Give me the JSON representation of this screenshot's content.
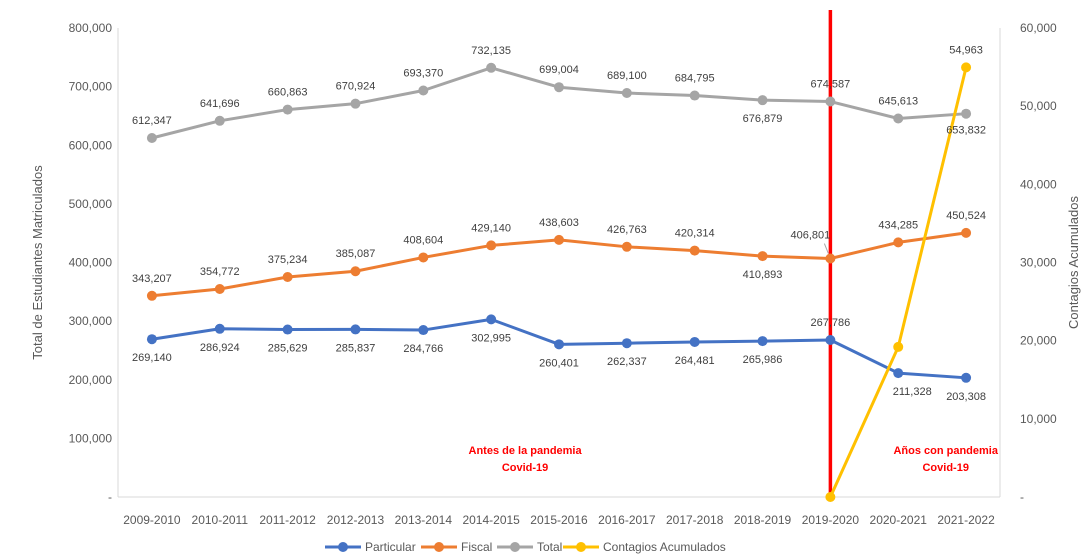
{
  "chart_data": {
    "type": "line",
    "categories": [
      "2009-2010",
      "2010-2011",
      "2011-2012",
      "2012-2013",
      "2013-2014",
      "2014-2015",
      "2015-2016",
      "2016-2017",
      "2017-2018",
      "2018-2019",
      "2019-2020",
      "2020-2021",
      "2021-2022"
    ],
    "ylabel": "Total de Estudiantes Matriculados",
    "y2label": "Contagios Acumulados",
    "ylim": [
      0,
      800000
    ],
    "y2lim": [
      0,
      60000
    ],
    "yticks": [
      "-",
      "100,000",
      "200,000",
      "300,000",
      "400,000",
      "500,000",
      "600,000",
      "700,000",
      "800,000"
    ],
    "y2ticks": [
      "-",
      "10,000",
      "20,000",
      "30,000",
      "40,000",
      "50,000",
      "60,000"
    ],
    "grid": false,
    "legend_position": "bottom",
    "series": [
      {
        "name": "Particular",
        "color": "#4472c4",
        "axis": "left",
        "values": [
          269140,
          286924,
          285629,
          285837,
          284766,
          302995,
          260401,
          262337,
          264481,
          265986,
          267786,
          211328,
          203308
        ],
        "labels": [
          "269,140",
          "286,924",
          "285,629",
          "285,837",
          "284,766",
          "302,995",
          "260,401",
          "262,337",
          "264,481",
          "265,986",
          "267,786",
          "211,328",
          "203,308"
        ]
      },
      {
        "name": "Fiscal",
        "color": "#ed7d31",
        "axis": "left",
        "values": [
          343207,
          354772,
          375234,
          385087,
          408604,
          429140,
          438603,
          426763,
          420314,
          410893,
          406801,
          434285,
          450524
        ],
        "labels": [
          "343,207",
          "354,772",
          "375,234",
          "385,087",
          "408,604",
          "429,140",
          "438,603",
          "426,763",
          "420,314",
          "410,893",
          "406,801",
          "434,285",
          "450,524"
        ]
      },
      {
        "name": "Total",
        "color": "#a5a5a5",
        "axis": "left",
        "values": [
          612347,
          641696,
          660863,
          670924,
          693370,
          732135,
          699004,
          689100,
          684795,
          676879,
          674587,
          645613,
          653832
        ],
        "labels": [
          "612,347",
          "641,696",
          "660,863",
          "670,924",
          "693,370",
          "732,135",
          "699,004",
          "689,100",
          "684,795",
          "676,879",
          "674,587",
          "645,613",
          "653,832"
        ]
      },
      {
        "name": "Contagios Acumulados",
        "color": "#ffc000",
        "axis": "right",
        "values": [
          null,
          null,
          null,
          null,
          null,
          null,
          null,
          null,
          null,
          null,
          0,
          19200,
          54963
        ],
        "labels": [
          null,
          null,
          null,
          null,
          null,
          null,
          null,
          null,
          null,
          null,
          null,
          null,
          "54,963"
        ]
      }
    ],
    "annotations": [
      {
        "lines": [
          "Antes de la pandemia",
          "Covid-19"
        ],
        "color": "#ff0000"
      },
      {
        "lines": [
          "Años con pandemia",
          "Covid-19"
        ],
        "color": "#ff0000"
      }
    ],
    "divider": {
      "after_category": "2019-2020",
      "color": "#ff0000"
    }
  }
}
